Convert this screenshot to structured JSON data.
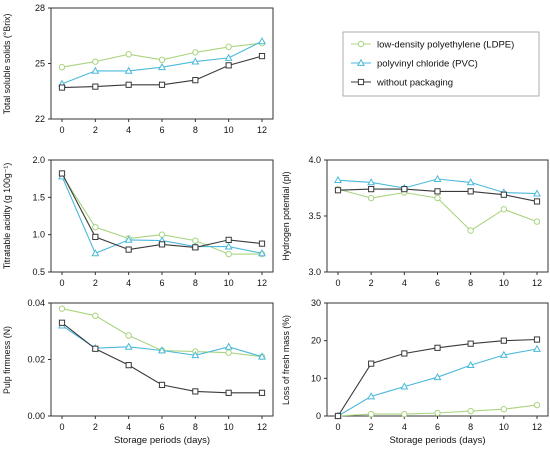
{
  "colors": {
    "ldpe": "#A9D47F",
    "pvc": "#4BB9DC",
    "none": "#3a3a3a",
    "frame": "#333333"
  },
  "legend": {
    "items": [
      {
        "key": "ldpe",
        "label": "low-density polyethylene (LDPE)",
        "marker": "circle"
      },
      {
        "key": "pvc",
        "label": "polyvinyl chloride (PVC)",
        "marker": "triangle"
      },
      {
        "key": "none",
        "label": "without packaging",
        "marker": "square"
      }
    ]
  },
  "chart_data": [
    {
      "type": "line",
      "ylabel": "Total soluble solids (°Brix)",
      "xlabel": "",
      "x": [
        0,
        2,
        4,
        6,
        8,
        10,
        12
      ],
      "xlim": [
        0,
        12
      ],
      "ylim": [
        22,
        28
      ],
      "yticks": [
        "22",
        "25",
        "28"
      ],
      "ytick_values": [
        22,
        25,
        28
      ],
      "series": [
        {
          "key": "ldpe",
          "name": "low-density polyethylene (LDPE)",
          "values": [
            24.8,
            25.1,
            25.5,
            25.2,
            25.6,
            25.9,
            26.1
          ]
        },
        {
          "key": "pvc",
          "name": "polyvinyl chloride (PVC)",
          "values": [
            23.9,
            24.6,
            24.6,
            24.8,
            25.1,
            25.3,
            26.2
          ]
        },
        {
          "key": "none",
          "name": "without packaging",
          "values": [
            23.7,
            23.75,
            23.85,
            23.85,
            24.1,
            24.9,
            25.4
          ]
        }
      ]
    },
    {
      "type": "line",
      "ylabel": "Titratable acidity (g 100g⁻¹)",
      "xlabel": "",
      "x": [
        0,
        2,
        4,
        6,
        8,
        10,
        12
      ],
      "xlim": [
        0,
        12
      ],
      "ylim": [
        0.5,
        2.0
      ],
      "yticks": [
        "0.5",
        "1.0",
        "1.5",
        "2.0"
      ],
      "ytick_values": [
        0.5,
        1.0,
        1.5,
        2.0
      ],
      "series": [
        {
          "key": "ldpe",
          "name": "low-density polyethylene (LDPE)",
          "values": [
            1.8,
            1.1,
            0.95,
            1.0,
            0.92,
            0.74,
            0.74
          ]
        },
        {
          "key": "pvc",
          "name": "polyvinyl chloride (PVC)",
          "values": [
            1.78,
            0.75,
            0.93,
            0.92,
            0.84,
            0.84,
            0.75
          ]
        },
        {
          "key": "none",
          "name": "without packaging",
          "values": [
            1.82,
            0.97,
            0.8,
            0.87,
            0.83,
            0.93,
            0.88
          ]
        }
      ]
    },
    {
      "type": "line",
      "ylabel": "Hydrogen potential (pl)",
      "xlabel": "",
      "x": [
        0,
        2,
        4,
        6,
        8,
        10,
        12
      ],
      "xlim": [
        0,
        12
      ],
      "ylim": [
        3.0,
        4.0
      ],
      "yticks": [
        "3.0",
        "3.5",
        "4.0"
      ],
      "ytick_values": [
        3.0,
        3.5,
        4.0
      ],
      "series": [
        {
          "key": "ldpe",
          "name": "low-density polyethylene (LDPE)",
          "values": [
            3.74,
            3.66,
            3.71,
            3.66,
            3.37,
            3.56,
            3.45
          ]
        },
        {
          "key": "pvc",
          "name": "polyvinyl chloride (PVC)",
          "values": [
            3.82,
            3.8,
            3.75,
            3.83,
            3.8,
            3.71,
            3.7
          ]
        },
        {
          "key": "none",
          "name": "without packaging",
          "values": [
            3.73,
            3.74,
            3.74,
            3.72,
            3.72,
            3.69,
            3.63
          ]
        }
      ]
    },
    {
      "type": "line",
      "ylabel": "Pulp firmness (N)",
      "xlabel": "Storage periods (days)",
      "x": [
        0,
        2,
        4,
        6,
        8,
        10,
        12
      ],
      "xlim": [
        0,
        12
      ],
      "ylim": [
        0,
        0.04
      ],
      "yticks": [
        "0.00",
        "0.02",
        "0.04"
      ],
      "ytick_values": [
        0,
        0.02,
        0.04
      ],
      "series": [
        {
          "key": "ldpe",
          "name": "low-density polyethylene (LDPE)",
          "values": [
            0.038,
            0.0355,
            0.0285,
            0.0232,
            0.0228,
            0.0224,
            0.021
          ]
        },
        {
          "key": "pvc",
          "name": "polyvinyl chloride (PVC)",
          "values": [
            0.032,
            0.024,
            0.0245,
            0.0232,
            0.0215,
            0.0245,
            0.021
          ]
        },
        {
          "key": "none",
          "name": "without packaging",
          "values": [
            0.033,
            0.0238,
            0.018,
            0.011,
            0.0087,
            0.0082,
            0.0082
          ]
        }
      ]
    },
    {
      "type": "line",
      "ylabel": "Loss of fresh mass (%)",
      "xlabel": "Storage periods (days)",
      "x": [
        0,
        2,
        4,
        6,
        8,
        10,
        12
      ],
      "xlim": [
        0,
        12
      ],
      "ylim": [
        0,
        30
      ],
      "yticks": [
        "0",
        "10",
        "20",
        "30"
      ],
      "ytick_values": [
        0,
        10,
        20,
        30
      ],
      "series": [
        {
          "key": "ldpe",
          "name": "low-density polyethylene (LDPE)",
          "values": [
            0,
            0.5,
            0.5,
            0.8,
            1.3,
            1.8,
            2.9
          ]
        },
        {
          "key": "pvc",
          "name": "polyvinyl chloride (PVC)",
          "values": [
            0,
            5.2,
            7.8,
            10.3,
            13.5,
            16.2,
            17.8
          ]
        },
        {
          "key": "none",
          "name": "without packaging",
          "values": [
            0,
            13.9,
            16.6,
            18.1,
            19.2,
            20.0,
            20.3
          ]
        }
      ]
    }
  ]
}
